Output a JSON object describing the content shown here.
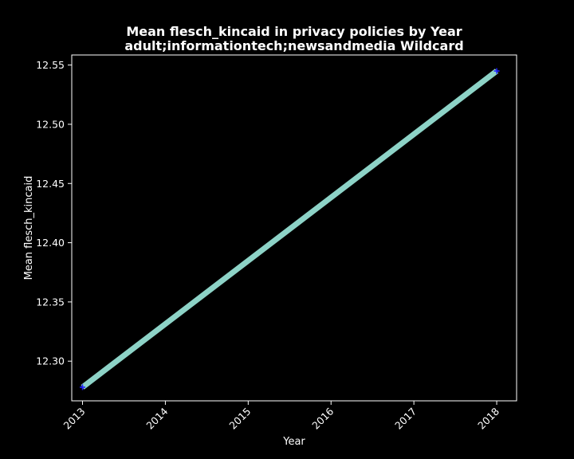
{
  "chart_data": {
    "type": "line",
    "title_lines": [
      "Mean flesch_kincaid in privacy policies by Year",
      "adult;informationtech;newsandmedia Wildcard"
    ],
    "xlabel": "Year",
    "ylabel": "Mean flesch_kincaid",
    "x_ticks": [
      "2013",
      "2014",
      "2015",
      "2016",
      "2017",
      "2018"
    ],
    "y_ticks": [
      "12.30",
      "12.35",
      "12.40",
      "12.45",
      "12.50",
      "12.55"
    ],
    "xlim": [
      2012.87,
      2018.24
    ],
    "ylim": [
      12.2665,
      12.5585
    ],
    "grid": false,
    "series": [
      {
        "x": [
          2013,
          2018
        ],
        "y": [
          12.278,
          12.545
        ]
      }
    ],
    "colors": {
      "background": "#000000",
      "line": "#8dd3c7",
      "marker": "#1f1fff",
      "text": "#ffffff"
    }
  }
}
